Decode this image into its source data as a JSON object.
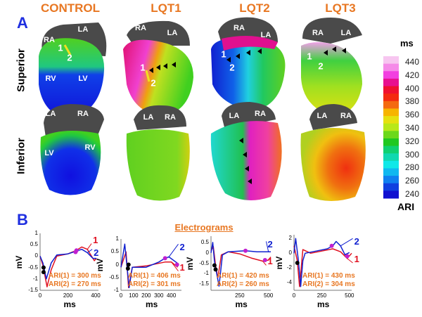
{
  "panels": {
    "a": "A",
    "b": "B"
  },
  "columns": [
    "CONTROL",
    "LQT1",
    "LQT2",
    "LQT3"
  ],
  "rows": [
    "Superior",
    "Inferior"
  ],
  "heart_labels": {
    "control_sup": [
      "RA",
      "LA",
      "RV",
      "LV",
      "1",
      "2"
    ],
    "control_inf": [
      "LA",
      "RA",
      "LV",
      "RV"
    ],
    "lqt1_sup": [
      "RA",
      "LA",
      "1",
      "2"
    ],
    "lqt1_inf": [
      "LA",
      "RA"
    ],
    "lqt2_sup": [
      "RA",
      "LA",
      "1",
      "2"
    ],
    "lqt2_inf": [
      "LA",
      "RA"
    ],
    "lqt3_sup": [
      "RA",
      "LA",
      "1",
      "2"
    ],
    "lqt3_inf": [
      "LA",
      "RA"
    ]
  },
  "colorbar": {
    "unit": "ms",
    "title": "ARI",
    "ticks": [
      "440",
      "420",
      "400",
      "380",
      "360",
      "340",
      "320",
      "300",
      "280",
      "260",
      "240"
    ],
    "colors": [
      "#f7c6f0",
      "#f58ae8",
      "#f23fe0",
      "#e8108f",
      "#f01030",
      "#f42a10",
      "#f46a10",
      "#f7b400",
      "#e6e010",
      "#b8e81a",
      "#6cd81a",
      "#20c820",
      "#10d070",
      "#10d8b0",
      "#10e8e8",
      "#10b8f0",
      "#1080f0",
      "#1040e0",
      "#1010d0"
    ]
  },
  "section_title": "Electrograms",
  "chart_data": [
    {
      "type": "line",
      "title": "CONTROL",
      "xlabel": "ms",
      "ylabel": "mV",
      "xlim": [
        0,
        420
      ],
      "ylim": [
        -1.5,
        1
      ],
      "xticks": [
        "0",
        "200",
        "400"
      ],
      "xtickvals": [
        0,
        200,
        400
      ],
      "yticks": [
        "1",
        "0.5",
        "0",
        "-0.5",
        "-1",
        "-1.5"
      ],
      "ytickvals": [
        1,
        0.5,
        0,
        -0.5,
        -1,
        -1.5
      ],
      "series": [
        {
          "name": "1",
          "color": "#e01020",
          "points": [
            [
              0,
              0
            ],
            [
              20,
              -0.4
            ],
            [
              50,
              -1.35
            ],
            [
              80,
              -0.6
            ],
            [
              120,
              0
            ],
            [
              200,
              0.1
            ],
            [
              260,
              0.25
            ],
            [
              300,
              0.4
            ],
            [
              340,
              0.3
            ],
            [
              390,
              -0.2
            ],
            [
              405,
              -0.1
            ]
          ]
        },
        {
          "name": "2",
          "color": "#1020d0",
          "points": [
            [
              0,
              0
            ],
            [
              20,
              -0.3
            ],
            [
              45,
              -1
            ],
            [
              80,
              -0.3
            ],
            [
              120,
              0.05
            ],
            [
              200,
              0.1
            ],
            [
              250,
              0.2
            ],
            [
              300,
              0.3
            ],
            [
              340,
              0.15
            ],
            [
              380,
              -0.1
            ],
            [
              405,
              -0.1
            ]
          ]
        }
      ],
      "activation_markers": [
        [
          25,
          -0.5
        ],
        [
          25,
          -0.7
        ]
      ],
      "repolarization_markers": [
        [
          255,
          0.18
        ],
        [
          262,
          0.25
        ]
      ],
      "arrow_tips": {
        "1": [
          370,
          0.55
        ],
        "2": [
          375,
          0.3
        ]
      },
      "annotations": [
        "ARI(1) = 300 ms",
        "ARI(2) = 270 ms"
      ]
    },
    {
      "type": "line",
      "title": "LQT1",
      "xlabel": "ms",
      "ylabel": "mV",
      "xlim": [
        0,
        480
      ],
      "ylim": [
        -1,
        1
      ],
      "xticks": [
        "0",
        "100",
        "200",
        "300",
        "400"
      ],
      "xtickvals": [
        0,
        100,
        200,
        300,
        400
      ],
      "yticks": [
        "1",
        "0.5",
        "0",
        "-0.5",
        "-1"
      ],
      "ytickvals": [
        1,
        0.5,
        0,
        -0.5,
        -1
      ],
      "series": [
        {
          "name": "1",
          "color": "#e01020",
          "points": [
            [
              0,
              -0.1
            ],
            [
              40,
              0.5
            ],
            [
              60,
              -0.9
            ],
            [
              90,
              -0.1
            ],
            [
              200,
              -0.05
            ],
            [
              350,
              0.1
            ],
            [
              400,
              0.1
            ],
            [
              450,
              -0.1
            ]
          ]
        },
        {
          "name": "2",
          "color": "#1020d0",
          "points": [
            [
              0,
              -0.1
            ],
            [
              30,
              0.8
            ],
            [
              65,
              -0.9
            ],
            [
              90,
              -0.1
            ],
            [
              200,
              -0.1
            ],
            [
              300,
              0.1
            ],
            [
              350,
              0.25
            ],
            [
              380,
              0.3
            ],
            [
              450,
              0.05
            ]
          ]
        }
      ],
      "activation_markers": [
        [
          60,
          0
        ],
        [
          55,
          -0.15
        ]
      ],
      "repolarization_markers": [
        [
          350,
          0.25
        ],
        [
          445,
          0
        ]
      ],
      "arrow_tips": {
        "1": [
          455,
          -0.25
        ],
        "2": [
          455,
          0.8
        ]
      },
      "annotations": [
        "ARI(1) = 406 ms",
        "ARI(2) = 301 ms"
      ]
    },
    {
      "type": "line",
      "title": "LQT2",
      "xlabel": "ms",
      "ylabel": "mV",
      "xlim": [
        0,
        520
      ],
      "ylim": [
        -1.8,
        0.8
      ],
      "xticks": [
        "250",
        "500"
      ],
      "xtickvals": [
        250,
        500
      ],
      "yticks": [
        "0.5",
        "0",
        "-0.5",
        "-1",
        "-1.5"
      ],
      "ytickvals": [
        0.5,
        0,
        -0.5,
        -1,
        -1.5
      ],
      "series": [
        {
          "name": "1",
          "color": "#e01020",
          "points": [
            [
              0,
              0.1
            ],
            [
              20,
              0.3
            ],
            [
              40,
              -0.6
            ],
            [
              60,
              -1.2
            ],
            [
              90,
              -0.1
            ],
            [
              150,
              0.05
            ],
            [
              250,
              -0.05
            ],
            [
              350,
              -0.25
            ],
            [
              450,
              -0.4
            ],
            [
              500,
              -0.35
            ],
            [
              520,
              -0.2
            ]
          ]
        },
        {
          "name": "2",
          "color": "#1020d0",
          "points": [
            [
              0,
              0
            ],
            [
              15,
              0.5
            ],
            [
              30,
              -0.4
            ],
            [
              70,
              -1.6
            ],
            [
              100,
              -0.1
            ],
            [
              150,
              0.05
            ],
            [
              300,
              0.1
            ],
            [
              400,
              0.05
            ],
            [
              500,
              0.05
            ],
            [
              520,
              0.05
            ]
          ]
        }
      ],
      "activation_markers": [
        [
          30,
          -0.6
        ],
        [
          40,
          -0.8
        ]
      ],
      "repolarization_markers": [
        [
          300,
          0.1
        ],
        [
          470,
          -0.35
        ]
      ],
      "arrow_tips": {
        "1": [
          480,
          -0.6
        ],
        "2": [
          480,
          0.55
        ]
      },
      "annotations": [
        "ARI(1) = 420 ms",
        "ARI(2) = 260 ms"
      ]
    },
    {
      "type": "line",
      "title": "LQT3",
      "xlabel": "ms",
      "ylabel": "mV",
      "xlim": [
        0,
        520
      ],
      "ylim": [
        -5,
        2.5
      ],
      "xticks": [
        "0",
        "250",
        "500"
      ],
      "xtickvals": [
        0,
        250,
        500
      ],
      "yticks": [
        "2",
        "0",
        "-2",
        "-4"
      ],
      "ytickvals": [
        2,
        0,
        -2,
        -4
      ],
      "series": [
        {
          "name": "1",
          "color": "#e01020",
          "points": [
            [
              0,
              1
            ],
            [
              30,
              -1
            ],
            [
              50,
              -4.5
            ],
            [
              80,
              0.5
            ],
            [
              150,
              0
            ],
            [
              250,
              0.3
            ],
            [
              350,
              0.6
            ],
            [
              420,
              0.2
            ],
            [
              480,
              -0.7
            ],
            [
              520,
              0
            ]
          ]
        },
        {
          "name": "2",
          "color": "#1020d0",
          "points": [
            [
              0,
              0
            ],
            [
              15,
              2
            ],
            [
              40,
              -1
            ],
            [
              60,
              -4.5
            ],
            [
              80,
              -1
            ],
            [
              100,
              0
            ],
            [
              200,
              0.3
            ],
            [
              300,
              0.6
            ],
            [
              350,
              1
            ],
            [
              380,
              1.6
            ],
            [
              420,
              1
            ],
            [
              460,
              -0.2
            ],
            [
              500,
              0.1
            ]
          ]
        }
      ],
      "activation_markers": [
        [
          30,
          -1.3
        ]
      ],
      "repolarization_markers": [
        [
          340,
          1
        ],
        [
          480,
          -0.4
        ]
      ],
      "arrow_tips": {
        "1": [
          530,
          -1.3
        ],
        "2": [
          530,
          2.0
        ]
      },
      "annotations": [
        "ARI(1) = 430 ms",
        "ARI(2) = 304 ms"
      ]
    }
  ]
}
